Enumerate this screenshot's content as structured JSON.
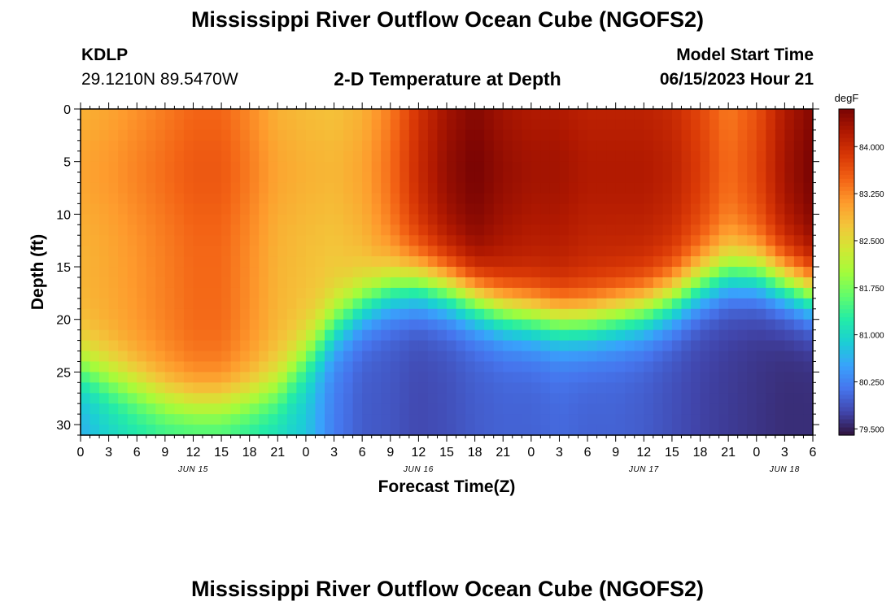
{
  "header": {
    "title": "Mississippi River Outflow Ocean Cube (NGOFS2)",
    "station_id": "KDLP",
    "station_coords": "29.1210N  89.5470W",
    "plot_title": "2-D Temperature at Depth",
    "model_start_label": "Model Start Time",
    "model_start_value": "06/15/2023 Hour 21"
  },
  "footer": {
    "title": "Mississippi River Outflow Ocean Cube (NGOFS2)"
  },
  "chart_data": {
    "type": "heatmap",
    "title": "2-D Temperature at Depth",
    "xlabel": "Forecast Time(Z)",
    "ylabel": "Depth (ft)",
    "x_range_hours": [
      0,
      78
    ],
    "x_ticks": [
      {
        "hour": 0,
        "label": "0"
      },
      {
        "hour": 3,
        "label": "3"
      },
      {
        "hour": 6,
        "label": "6"
      },
      {
        "hour": 9,
        "label": "9"
      },
      {
        "hour": 12,
        "label": "12"
      },
      {
        "hour": 15,
        "label": "15"
      },
      {
        "hour": 18,
        "label": "18"
      },
      {
        "hour": 21,
        "label": "21"
      },
      {
        "hour": 24,
        "label": "0"
      },
      {
        "hour": 27,
        "label": "3"
      },
      {
        "hour": 30,
        "label": "6"
      },
      {
        "hour": 33,
        "label": "9"
      },
      {
        "hour": 36,
        "label": "12"
      },
      {
        "hour": 39,
        "label": "15"
      },
      {
        "hour": 42,
        "label": "18"
      },
      {
        "hour": 45,
        "label": "21"
      },
      {
        "hour": 48,
        "label": "0"
      },
      {
        "hour": 51,
        "label": "3"
      },
      {
        "hour": 54,
        "label": "6"
      },
      {
        "hour": 57,
        "label": "9"
      },
      {
        "hour": 60,
        "label": "12"
      },
      {
        "hour": 63,
        "label": "15"
      },
      {
        "hour": 66,
        "label": "18"
      },
      {
        "hour": 69,
        "label": "21"
      },
      {
        "hour": 72,
        "label": "0"
      },
      {
        "hour": 75,
        "label": "3"
      },
      {
        "hour": 78,
        "label": "6"
      }
    ],
    "date_labels": [
      {
        "hour": 12,
        "label": "JUN 15"
      },
      {
        "hour": 36,
        "label": "JUN 16"
      },
      {
        "hour": 60,
        "label": "JUN 17"
      },
      {
        "hour": 75,
        "label": "JUN 18"
      }
    ],
    "y_range_ft": [
      0,
      31
    ],
    "y_ticks": [
      0,
      5,
      10,
      15,
      20,
      25,
      30
    ],
    "colorbar": {
      "units": "degF",
      "range": [
        79.4,
        84.6
      ],
      "ticks": [
        "84.000",
        "83.250",
        "82.500",
        "81.750",
        "81.000",
        "80.250",
        "79.500"
      ],
      "tick_values": [
        84.0,
        83.25,
        82.5,
        81.75,
        81.0,
        80.25,
        79.5
      ],
      "colors": [
        "#30123b",
        "#4145ab",
        "#4675ed",
        "#39a2fc",
        "#1bcfd4",
        "#24eca6",
        "#61fc6c",
        "#a4fc3b",
        "#d1e834",
        "#f3c63a",
        "#fe9b2d",
        "#f36315",
        "#d93806",
        "#b11901",
        "#7a0403"
      ]
    },
    "profiles": [
      {
        "hour": 0,
        "thermocline_ft": 24.5,
        "top_degF": 82.9,
        "bottom_degF": 80.6
      },
      {
        "hour": 3,
        "thermocline_ft": 25.5,
        "top_degF": 83.0,
        "bottom_degF": 80.9
      },
      {
        "hour": 6,
        "thermocline_ft": 26.5,
        "top_degF": 83.15,
        "bottom_degF": 81.1
      },
      {
        "hour": 9,
        "thermocline_ft": 27.5,
        "top_degF": 83.3,
        "bottom_degF": 81.2
      },
      {
        "hour": 12,
        "thermocline_ft": 28.0,
        "top_degF": 83.45,
        "bottom_degF": 81.2
      },
      {
        "hour": 15,
        "thermocline_ft": 28.0,
        "top_degF": 83.45,
        "bottom_degF": 81.2
      },
      {
        "hour": 18,
        "thermocline_ft": 27.5,
        "top_degF": 83.2,
        "bottom_degF": 81.1
      },
      {
        "hour": 21,
        "thermocline_ft": 26.5,
        "top_degF": 82.9,
        "bottom_degF": 81.0
      },
      {
        "hour": 24,
        "thermocline_ft": 23.5,
        "top_degF": 82.8,
        "bottom_degF": 80.8
      },
      {
        "hour": 27,
        "thermocline_ft": 20.5,
        "top_degF": 82.75,
        "bottom_degF": 80.2
      },
      {
        "hour": 30,
        "thermocline_ft": 18.5,
        "top_degF": 82.9,
        "bottom_degF": 79.95
      },
      {
        "hour": 33,
        "thermocline_ft": 17.0,
        "top_degF": 83.3,
        "bottom_degF": 79.9
      },
      {
        "hour": 36,
        "thermocline_ft": 16.5,
        "top_degF": 83.9,
        "bottom_degF": 79.8
      },
      {
        "hour": 39,
        "thermocline_ft": 17.0,
        "top_degF": 84.3,
        "bottom_degF": 79.85
      },
      {
        "hour": 42,
        "thermocline_ft": 18.0,
        "top_degF": 84.5,
        "bottom_degF": 79.95
      },
      {
        "hour": 45,
        "thermocline_ft": 19.0,
        "top_degF": 84.3,
        "bottom_degF": 80.0
      },
      {
        "hour": 48,
        "thermocline_ft": 19.5,
        "top_degF": 84.2,
        "bottom_degF": 80.0
      },
      {
        "hour": 51,
        "thermocline_ft": 20.0,
        "top_degF": 84.2,
        "bottom_degF": 80.05
      },
      {
        "hour": 54,
        "thermocline_ft": 20.0,
        "top_degF": 84.1,
        "bottom_degF": 80.0
      },
      {
        "hour": 57,
        "thermocline_ft": 19.5,
        "top_degF": 84.1,
        "bottom_degF": 80.0
      },
      {
        "hour": 60,
        "thermocline_ft": 19.0,
        "top_degF": 84.1,
        "bottom_degF": 79.95
      },
      {
        "hour": 63,
        "thermocline_ft": 18.0,
        "top_degF": 84.0,
        "bottom_degF": 79.85
      },
      {
        "hour": 66,
        "thermocline_ft": 16.5,
        "top_degF": 83.7,
        "bottom_degF": 79.75
      },
      {
        "hour": 69,
        "thermocline_ft": 15.5,
        "top_degF": 83.3,
        "bottom_degF": 79.7
      },
      {
        "hour": 72,
        "thermocline_ft": 15.5,
        "top_degF": 83.6,
        "bottom_degF": 79.65
      },
      {
        "hour": 75,
        "thermocline_ft": 16.5,
        "top_degF": 84.2,
        "bottom_degF": 79.6
      },
      {
        "hour": 78,
        "thermocline_ft": 17.5,
        "top_degF": 84.5,
        "bottom_degF": 79.6
      }
    ]
  }
}
